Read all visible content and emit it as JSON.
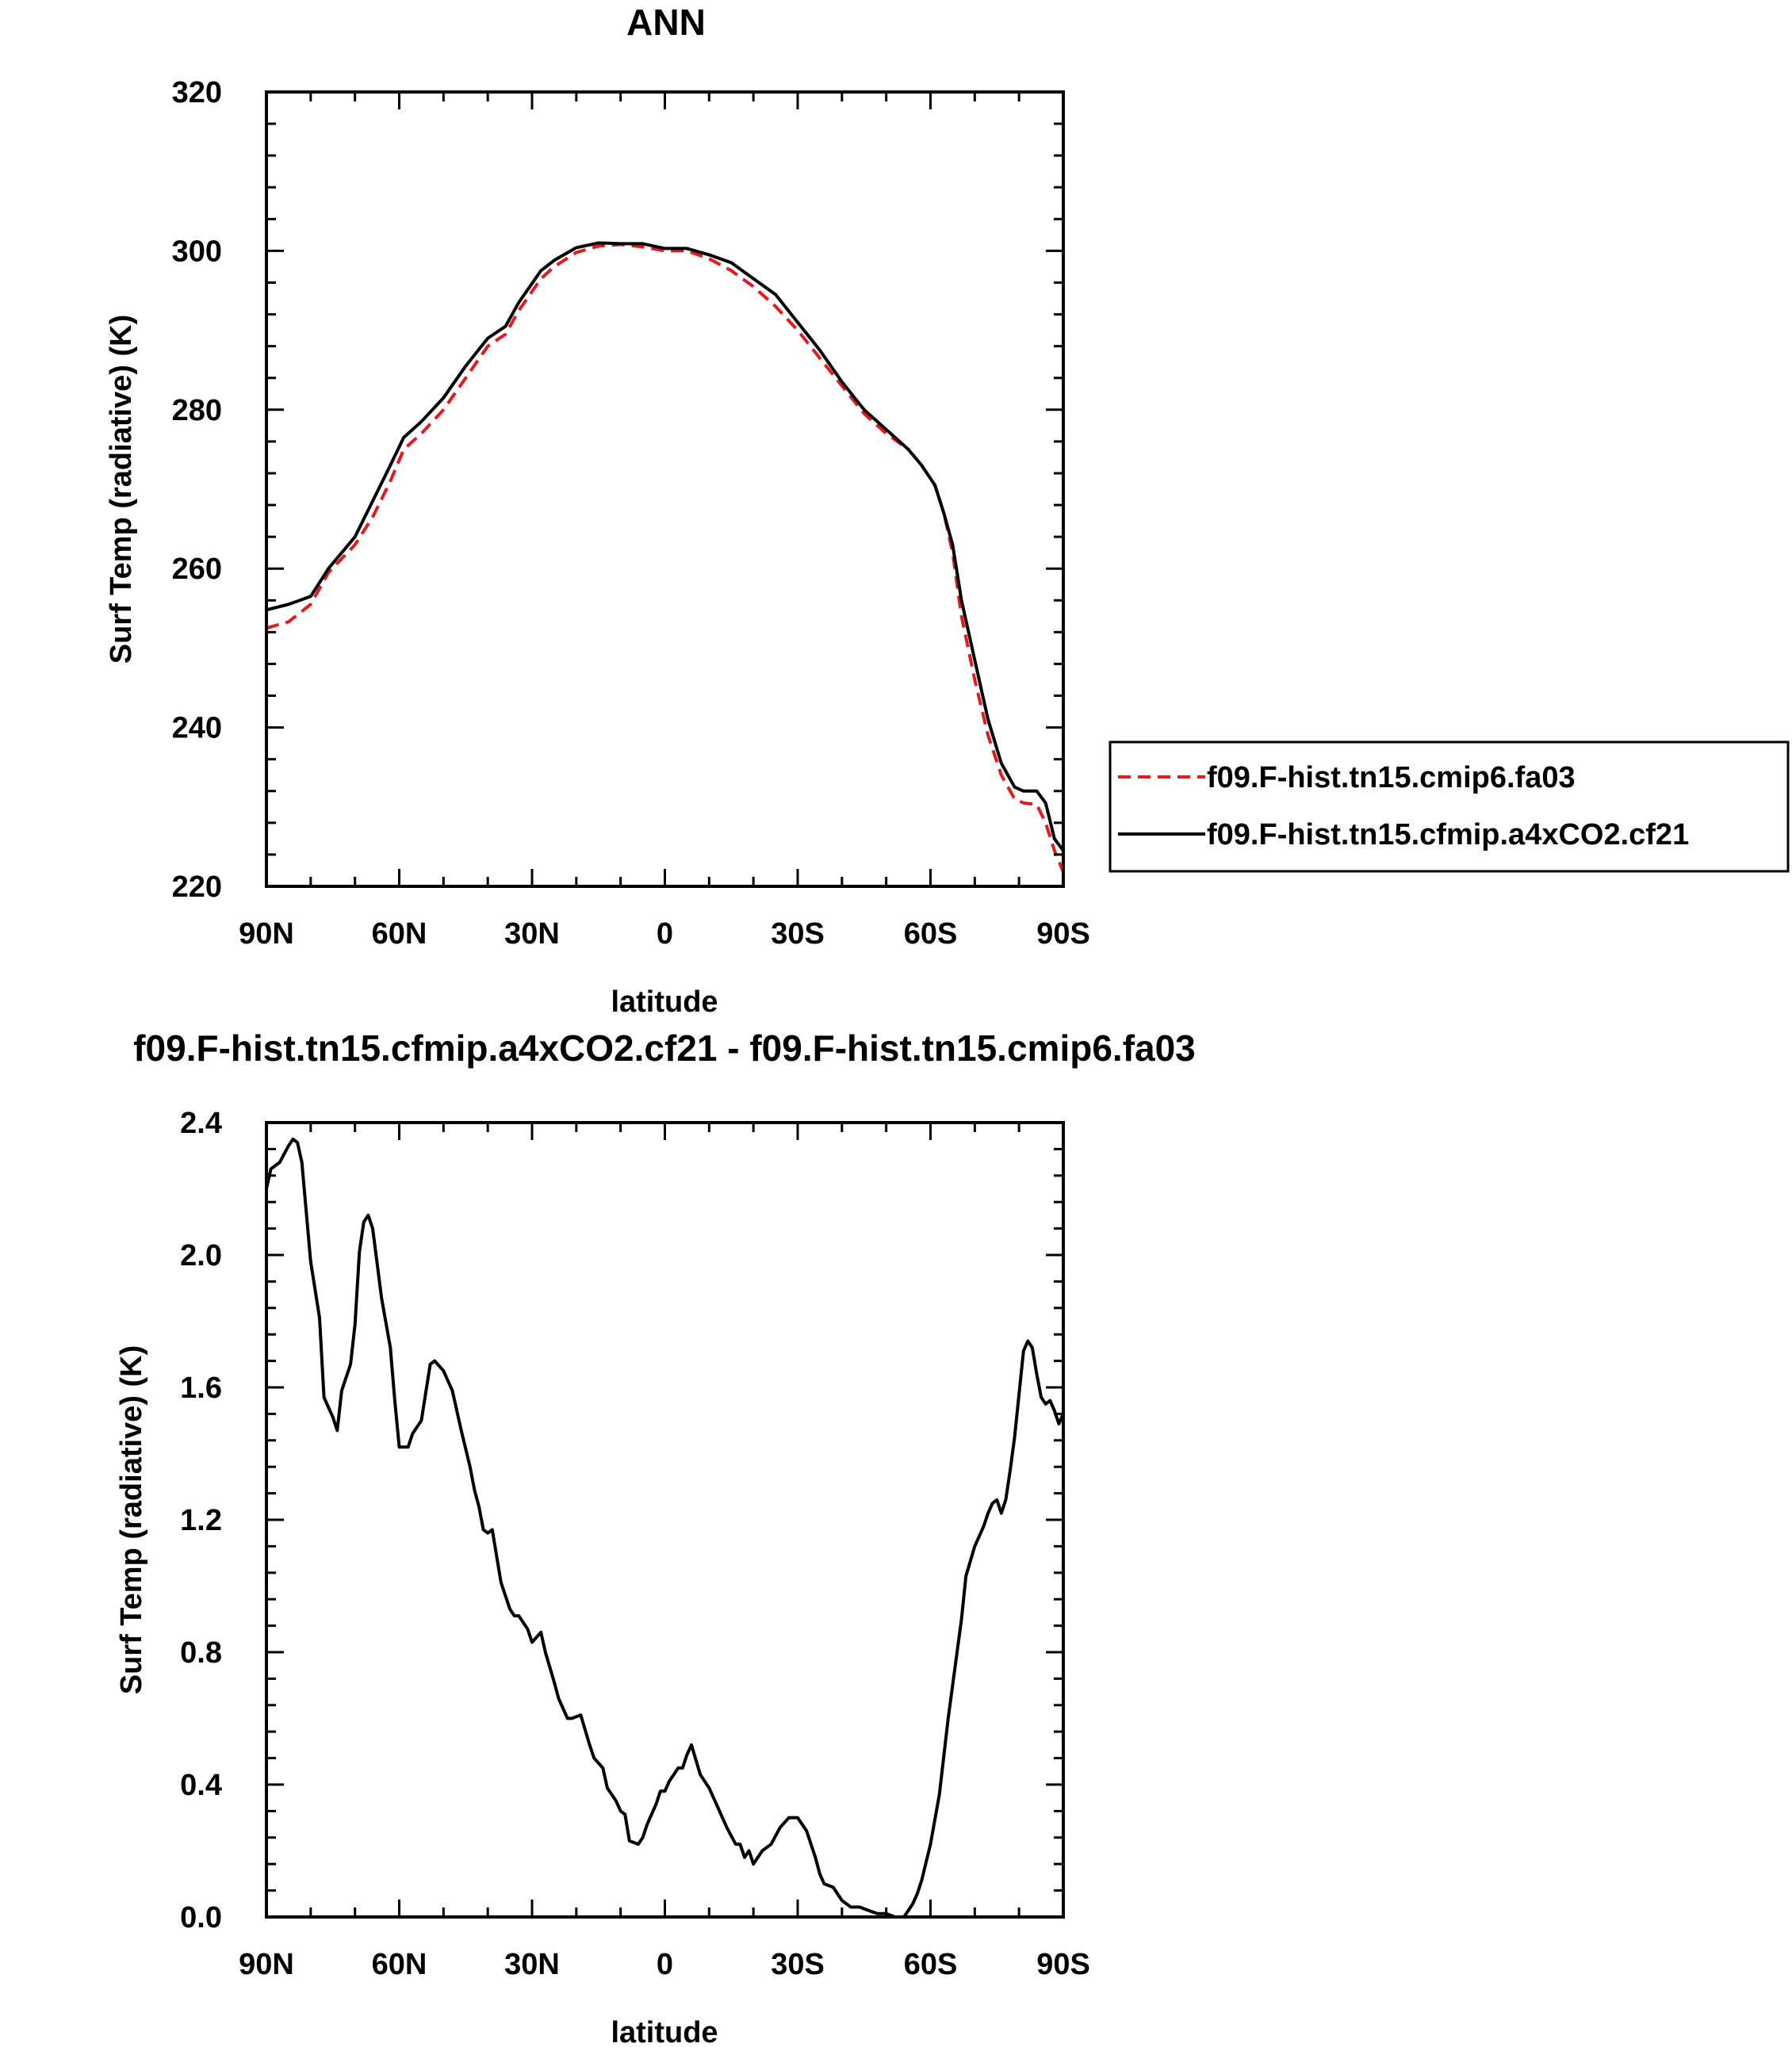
{
  "chart_data": [
    {
      "type": "line",
      "title": "ANN",
      "xlabel": "latitude",
      "ylabel": "Surf Temp (radiative) (K)",
      "xlim": [
        90,
        -90
      ],
      "ylim": [
        220,
        320
      ],
      "xticks": [
        90,
        60,
        30,
        0,
        -30,
        -60,
        -90
      ],
      "xtick_labels": [
        "90N",
        "60N",
        "30N",
        "0",
        "30S",
        "60S",
        "90S"
      ],
      "yticks": [
        220,
        240,
        260,
        280,
        300,
        320
      ],
      "ytick_labels": [
        "220",
        "240",
        "260",
        "280",
        "300",
        "320"
      ],
      "legend_position": "right",
      "series": [
        {
          "name": "f09.F-hist.tn15.cmip6.fa03",
          "color": "#e41a1c",
          "dash": "dashed",
          "x": [
            90,
            85,
            80,
            76,
            70,
            66,
            62,
            59,
            55,
            50,
            45,
            40,
            36,
            33,
            28,
            25,
            20,
            15,
            10,
            5,
            0,
            -5,
            -10,
            -15,
            -20,
            -25,
            -30,
            -35,
            -40,
            -45,
            -50,
            -55,
            -58,
            -61,
            -63,
            -65,
            -67,
            -70,
            -73,
            -76,
            -79,
            -81,
            -84,
            -86,
            -88,
            -90
          ],
          "values": [
            252.5,
            253.3,
            255.5,
            259.5,
            263,
            266.5,
            271,
            275,
            277,
            280,
            284,
            288,
            289.5,
            292.5,
            296.5,
            298,
            299.8,
            300.6,
            300.8,
            300.5,
            300.0,
            300.0,
            299.0,
            297.5,
            295.5,
            293.0,
            290.0,
            286.5,
            283.0,
            279.5,
            277.0,
            275.0,
            273.0,
            270.5,
            267.0,
            262.0,
            254.0,
            246.0,
            239.0,
            234.0,
            231.0,
            230.5,
            230.3,
            228.0,
            224.5,
            221.8
          ]
        },
        {
          "name": "f09.F-hist.tn15.cfmip.a4xCO2.cf21",
          "color": "#000000",
          "dash": "solid",
          "x": [
            90,
            85,
            80,
            76,
            70,
            66,
            62,
            59,
            55,
            50,
            45,
            40,
            36,
            33,
            28,
            25,
            20,
            15,
            10,
            5,
            0,
            -5,
            -10,
            -15,
            -20,
            -25,
            -30,
            -35,
            -40,
            -45,
            -50,
            -55,
            -58,
            -61,
            -63,
            -65,
            -67,
            -70,
            -73,
            -76,
            -79,
            -81,
            -84,
            -86,
            -88,
            -90
          ],
          "values": [
            254.8,
            255.5,
            256.5,
            260,
            264,
            268.5,
            273,
            276.5,
            278.5,
            281.5,
            285.5,
            289,
            290.5,
            293.5,
            297.5,
            298.8,
            300.4,
            301.0,
            300.9,
            300.9,
            300.3,
            300.3,
            299.5,
            298.5,
            296.5,
            294.5,
            291.0,
            287.5,
            283.5,
            280.0,
            277.5,
            275.0,
            273.0,
            270.5,
            267.0,
            263.0,
            256.0,
            248.5,
            241.0,
            235.5,
            232.5,
            232.0,
            232.0,
            230.5,
            226.0,
            224.5
          ]
        }
      ]
    },
    {
      "type": "line",
      "title": "f09.F-hist.tn15.cfmip.a4xCO2.cf21 - f09.F-hist.tn15.cmip6.fa03",
      "xlabel": "latitude",
      "ylabel": "Surf Temp (radiative) (K)",
      "xlim": [
        90,
        -90
      ],
      "ylim": [
        0.0,
        2.4
      ],
      "xticks": [
        90,
        60,
        30,
        0,
        -30,
        -60,
        -90
      ],
      "xtick_labels": [
        "90N",
        "60N",
        "30N",
        "0",
        "30S",
        "60S",
        "90S"
      ],
      "yticks": [
        0.0,
        0.4,
        0.8,
        1.2,
        1.6,
        2.0,
        2.4
      ],
      "ytick_labels": [
        "0.0",
        "0.4",
        "0.8",
        "1.2",
        "1.6",
        "2.0",
        "2.4"
      ],
      "series": [
        {
          "color": "#000000",
          "dash": "solid",
          "x": [
            90,
            89,
            87,
            85,
            84,
            83,
            82,
            80,
            78,
            77,
            75,
            74,
            73,
            71,
            70,
            69,
            68,
            67,
            66,
            64,
            62,
            61,
            60,
            58,
            57,
            55,
            53,
            52,
            50,
            48,
            46,
            44,
            43,
            42,
            41,
            40,
            39,
            37,
            35,
            34,
            33,
            31,
            30,
            28,
            27,
            25,
            24,
            22,
            21,
            19,
            17,
            16,
            14,
            13,
            11,
            10,
            9,
            8,
            6,
            5,
            4,
            2,
            1,
            0,
            -1,
            -2,
            -3,
            -4,
            -5,
            -6,
            -8,
            -10,
            -12,
            -14,
            -16,
            -17,
            -18,
            -19,
            -20,
            -22,
            -24,
            -26,
            -28,
            -29,
            -30,
            -32,
            -34,
            -35,
            -36,
            -38,
            -40,
            -42,
            -44,
            -46,
            -48,
            -50,
            -52,
            -54,
            -55,
            -56,
            -57,
            -58,
            -60,
            -62,
            -64,
            -66,
            -67,
            -68,
            -70,
            -71,
            -72,
            -73,
            -74,
            -75,
            -76,
            -77,
            -78,
            -79,
            -80,
            -81,
            -82,
            -83,
            -84,
            -85,
            -86,
            -87,
            -88,
            -89,
            -90
          ],
          "values": [
            2.2,
            2.26,
            2.28,
            2.33,
            2.35,
            2.34,
            2.28,
            1.98,
            1.81,
            1.57,
            1.51,
            1.47,
            1.59,
            1.67,
            1.79,
            2.01,
            2.1,
            2.12,
            2.08,
            1.87,
            1.72,
            1.56,
            1.42,
            1.42,
            1.46,
            1.5,
            1.67,
            1.68,
            1.65,
            1.59,
            1.47,
            1.36,
            1.29,
            1.24,
            1.17,
            1.16,
            1.17,
            1.01,
            0.93,
            0.91,
            0.91,
            0.87,
            0.83,
            0.86,
            0.8,
            0.71,
            0.66,
            0.6,
            0.6,
            0.61,
            0.52,
            0.48,
            0.45,
            0.39,
            0.35,
            0.32,
            0.31,
            0.23,
            0.22,
            0.24,
            0.28,
            0.34,
            0.38,
            0.38,
            0.41,
            0.43,
            0.45,
            0.45,
            0.49,
            0.52,
            0.43,
            0.39,
            0.33,
            0.27,
            0.22,
            0.22,
            0.18,
            0.2,
            0.16,
            0.2,
            0.22,
            0.27,
            0.3,
            0.3,
            0.3,
            0.26,
            0.18,
            0.13,
            0.1,
            0.09,
            0.05,
            0.03,
            0.03,
            0.02,
            0.01,
            0.01,
            0.0,
            0.0,
            0.02,
            0.04,
            0.07,
            0.11,
            0.22,
            0.37,
            0.6,
            0.8,
            0.9,
            1.03,
            1.12,
            1.15,
            1.18,
            1.22,
            1.25,
            1.26,
            1.22,
            1.26,
            1.35,
            1.45,
            1.58,
            1.71,
            1.74,
            1.72,
            1.64,
            1.57,
            1.55,
            1.56,
            1.53,
            1.49,
            1.52
          ]
        }
      ]
    }
  ]
}
